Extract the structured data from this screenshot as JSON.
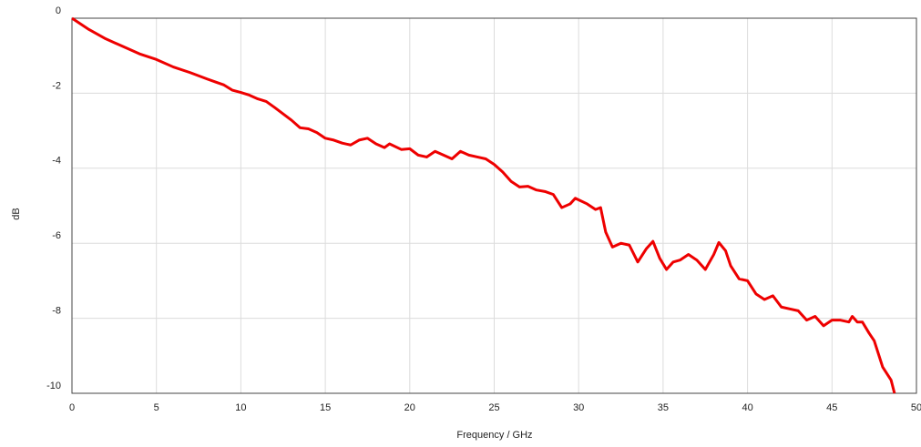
{
  "chart_data": {
    "type": "line",
    "x_label": "Frequency / GHz",
    "y_label": "dB",
    "xlim": [
      0,
      50
    ],
    "ylim": [
      -10,
      0
    ],
    "xticks": [
      0,
      5,
      10,
      15,
      20,
      25,
      30,
      35,
      40,
      45,
      50
    ],
    "yticks": [
      0,
      -2,
      -4,
      -6,
      -8,
      -10
    ],
    "grid": true,
    "series": [
      {
        "color": "#ee0000",
        "x": [
          0,
          1,
          2,
          3,
          4,
          5,
          6,
          7,
          8,
          8.5,
          9,
          9.5,
          10,
          10.5,
          11,
          11.5,
          12,
          12.5,
          13,
          13.5,
          14,
          14.5,
          15,
          15.5,
          16,
          16.5,
          17,
          17.5,
          18,
          18.5,
          18.8,
          19.5,
          20,
          20.5,
          21,
          21.5,
          22,
          22.5,
          23,
          23.5,
          24,
          24.5,
          25,
          25.5,
          26,
          26.5,
          27,
          27.5,
          28,
          28.5,
          29,
          29.5,
          29.8,
          30.5,
          31,
          31.3,
          31.6,
          32,
          32.5,
          33,
          33.5,
          34,
          34.4,
          34.8,
          35.2,
          35.6,
          36,
          36.5,
          37,
          37.5,
          38,
          38.3,
          38.7,
          39,
          39.5,
          40,
          40.5,
          41,
          41.5,
          42,
          42.5,
          43,
          43.5,
          44,
          44.5,
          45,
          45.5,
          46,
          46.2,
          46.5,
          46.8,
          47.2,
          47.5,
          48,
          48.5,
          48.7
        ],
        "values": [
          0,
          -0.3,
          -0.55,
          -0.75,
          -0.95,
          -1.1,
          -1.3,
          -1.45,
          -1.62,
          -1.7,
          -1.78,
          -1.92,
          -1.98,
          -2.05,
          -2.15,
          -2.22,
          -2.38,
          -2.55,
          -2.72,
          -2.92,
          -2.95,
          -3.05,
          -3.2,
          -3.25,
          -3.33,
          -3.38,
          -3.25,
          -3.2,
          -3.35,
          -3.45,
          -3.35,
          -3.5,
          -3.48,
          -3.65,
          -3.7,
          -3.55,
          -3.65,
          -3.75,
          -3.55,
          -3.65,
          -3.7,
          -3.75,
          -3.9,
          -4.1,
          -4.35,
          -4.5,
          -4.48,
          -4.58,
          -4.62,
          -4.7,
          -5.05,
          -4.95,
          -4.8,
          -4.95,
          -5.1,
          -5.05,
          -5.7,
          -6.1,
          -6.0,
          -6.05,
          -6.5,
          -6.15,
          -5.95,
          -6.4,
          -6.7,
          -6.5,
          -6.45,
          -6.3,
          -6.45,
          -6.7,
          -6.3,
          -5.98,
          -6.2,
          -6.6,
          -6.95,
          -7.0,
          -7.35,
          -7.5,
          -7.4,
          -7.7,
          -7.75,
          -7.8,
          -8.05,
          -7.95,
          -8.2,
          -8.05,
          -8.05,
          -8.1,
          -7.95,
          -8.1,
          -8.1,
          -8.4,
          -8.6,
          -9.3,
          -9.65,
          -10
        ]
      }
    ]
  }
}
